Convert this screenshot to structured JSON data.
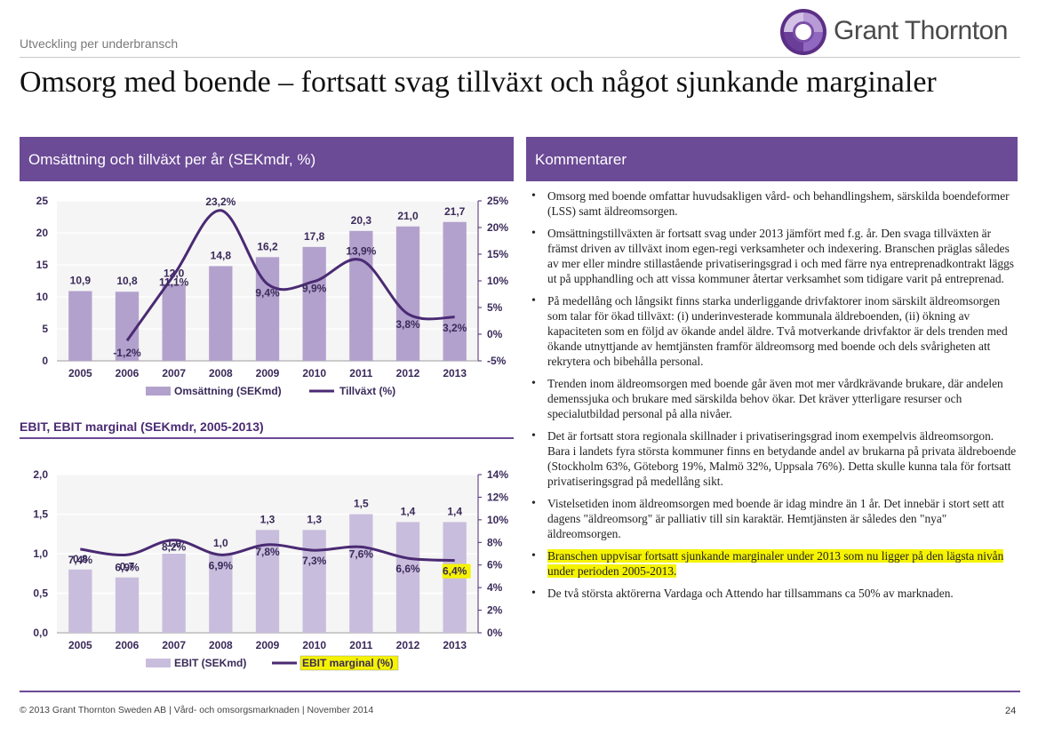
{
  "header": {
    "section": "Utveckling per underbransch",
    "brand": "Grant Thornton",
    "title": "Omsorg med boende – fortsatt svag tillväxt och något sjunkande marginaler"
  },
  "panels": {
    "chart1_header": "Omsättning och tillväxt per år (SEKmdr, %)",
    "chart2_title": "EBIT, EBIT marginal (SEKmdr, 2005-2013)",
    "comments_header": "Kommentarer"
  },
  "colors": {
    "accent": "#6b4a96",
    "bar1": "#b3a1cd",
    "bar2": "#c9bddd",
    "line": "#4a2a73",
    "highlight": "#f5f300"
  },
  "chart_data": [
    {
      "type": "bar",
      "title": "Omsättning och tillväxt per år (SEKmdr, %)",
      "categories": [
        "2005",
        "2006",
        "2007",
        "2008",
        "2009",
        "2010",
        "2011",
        "2012",
        "2013"
      ],
      "series": [
        {
          "name": "Omsättning (SEKmd)",
          "type": "bar",
          "axis": "left",
          "values": [
            10.9,
            10.8,
            12.0,
            14.8,
            16.2,
            17.8,
            20.3,
            21.0,
            21.7
          ],
          "labels": [
            "10,9",
            "10,8",
            "12,0",
            "14,8",
            "16,2",
            "17,8",
            "20,3",
            "21,0",
            "21,7"
          ]
        },
        {
          "name": "Tillväxt (%)",
          "type": "line",
          "axis": "right",
          "values": [
            null,
            -1.2,
            11.1,
            23.2,
            9.4,
            9.9,
            13.9,
            3.8,
            3.2
          ],
          "labels": [
            "",
            "-1,2%",
            "11,1%",
            "23,2%",
            "9,4%",
            "9,9%",
            "13,9%",
            "3,8%",
            "3,2%"
          ]
        }
      ],
      "ylim": [
        0,
        25
      ],
      "yticks": [
        "0",
        "5",
        "10",
        "15",
        "20",
        "25"
      ],
      "y2lim": [
        -5,
        25
      ],
      "y2ticks": [
        "-5%",
        "0%",
        "5%",
        "10%",
        "15%",
        "20%",
        "25%"
      ],
      "legend": [
        "Omsättning (SEKmd)",
        "Tillväxt (%)"
      ]
    },
    {
      "type": "bar",
      "title": "EBIT, EBIT marginal (SEKmdr, 2005-2013)",
      "categories": [
        "2005",
        "2006",
        "2007",
        "2008",
        "2009",
        "2010",
        "2011",
        "2012",
        "2013"
      ],
      "series": [
        {
          "name": "EBIT (SEKmd)",
          "type": "bar",
          "axis": "left",
          "values": [
            0.8,
            0.7,
            1.0,
            1.0,
            1.3,
            1.3,
            1.5,
            1.4,
            1.4
          ],
          "labels": [
            "0,8",
            "0,7",
            "1,0",
            "1,0",
            "1,3",
            "1,3",
            "1,5",
            "1,4",
            "1,4"
          ]
        },
        {
          "name": "EBIT marginal (%)",
          "type": "line",
          "axis": "right",
          "values": [
            7.4,
            6.9,
            8.2,
            6.9,
            7.8,
            7.3,
            7.6,
            6.6,
            6.4
          ],
          "labels": [
            "7,4%",
            "6,9%",
            "8,2%",
            "6,9%",
            "7,8%",
            "7,3%",
            "7,6%",
            "6,6%",
            "6,4%"
          ]
        }
      ],
      "ylim": [
        0,
        2.0
      ],
      "yticks": [
        "0,0",
        "0,5",
        "1,0",
        "1,5",
        "2,0"
      ],
      "y2lim": [
        0,
        14
      ],
      "y2ticks": [
        "0%",
        "2%",
        "4%",
        "6%",
        "8%",
        "10%",
        "12%",
        "14%"
      ],
      "legend": [
        "EBIT (SEKmd)",
        "EBIT marginal (%)"
      ]
    }
  ],
  "comments": [
    {
      "text": "Omsorg med boende omfattar huvudsakligen vård- och behandlingshem, särskilda boendeformer (LSS) samt äldreomsorgen.",
      "highlight": false
    },
    {
      "text": "Omsättningstillväxten är fortsatt svag under 2013 jämfört med f.g. år. Den svaga tillväxten är främst driven av tillväxt inom egen-regi verksamheter och indexering. Branschen präglas således av mer eller mindre stillastående privatiseringsgrad i och med färre nya entreprenadkontrakt läggs ut på upphandling och att vissa kommuner återtar verksamhet som tidigare varit på entreprenad.",
      "highlight": false
    },
    {
      "text": "På medellång och långsikt finns starka underliggande drivfaktorer inom särskilt äldreomsorgen som talar för ökad tillväxt: (i) underinvesterade kommunala äldreboenden, (ii) ökning av kapaciteten som en följd av ökande andel äldre. Två motverkande drivfaktor är dels trenden med ökande utnyttjande av hemtjänsten framför äldreomsorg med boende och dels svårigheten att rekrytera och bibehålla personal.",
      "highlight": false
    },
    {
      "text": "Trenden inom äldreomsorgen med boende går även mot mer vårdkrävande brukare, där andelen demenssjuka och brukare med särskilda behov ökar. Det kräver ytterligare resurser och specialutbildad personal på alla nivåer.",
      "highlight": false
    },
    {
      "text": "Det är fortsatt stora regionala skillnader i privatiseringsgrad inom exempelvis äldreomsorgon. Bara i landets fyra största kommuner finns en betydande andel av brukarna på privata äldreboende (Stockholm 63%, Göteborg 19%, Malmö 32%, Uppsala 76%). Detta skulle kunna tala för fortsatt privatiseringsgrad på medellång sikt.",
      "highlight": false
    },
    {
      "text": "Vistelsetiden inom äldreomsorgen med boende är idag mindre än 1 år. Det innebär i stort sett att dagens \"äldreomsorg\" är palliativ till sin karaktär. Hemtjänsten är således den \"nya\" äldreomsorgen.",
      "highlight": false
    },
    {
      "text": "Branschen uppvisar fortsatt sjunkande marginaler under 2013 som nu ligger på den lägsta nivån under perioden 2005-2013.",
      "highlight": true
    },
    {
      "text": "De två största aktörerna Vardaga och Attendo har tillsammans ca 50% av marknaden.",
      "highlight": false
    }
  ],
  "footer": {
    "copyright": "© 2013 Grant Thornton Sweden AB  |  Vård- och omsorgsmarknaden  |  November 2014",
    "page": "24"
  }
}
